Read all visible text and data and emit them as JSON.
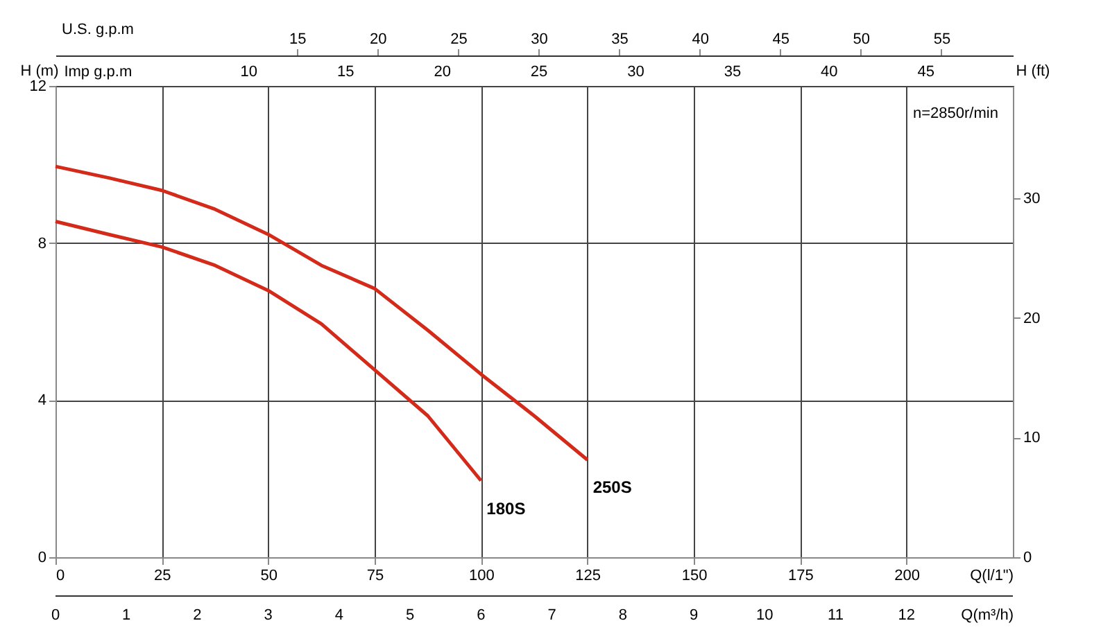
{
  "chart_data": {
    "type": "line",
    "x": [
      0,
      12.5,
      25,
      37.5,
      50,
      62.5,
      75,
      87.5,
      100,
      112.5,
      125
    ],
    "series": [
      {
        "name": "180S",
        "color": "#d42a1a",
        "values": [
          8.55,
          8.22,
          7.9,
          7.43,
          6.79,
          5.94,
          4.77,
          3.6,
          1.95,
          null,
          null
        ]
      },
      {
        "name": "250S",
        "color": "#d42a1a",
        "values": [
          9.95,
          9.66,
          9.34,
          8.86,
          8.22,
          7.43,
          6.84,
          5.78,
          4.66,
          3.6,
          2.48
        ]
      }
    ],
    "xlim": [
      0,
      225
    ],
    "xticks": [
      0,
      25,
      50,
      75,
      100,
      125,
      150,
      175,
      200
    ],
    "xlabel": "Q(l/1\")",
    "x2lim": [
      0,
      59.44
    ],
    "x2ticks": [
      15,
      20,
      25,
      30,
      35,
      40,
      45,
      50,
      55
    ],
    "x2label": "U.S.  g.p.m",
    "ylim": [
      0,
      12
    ],
    "yticks": [
      0,
      4,
      8,
      12
    ],
    "ylabel": "H (m)",
    "y2lim": [
      0,
      39.37
    ],
    "y2ticks": [
      0,
      10,
      20,
      30
    ],
    "y2label": "H (ft)",
    "annotations": [
      "n=2850r/min",
      "Imp  g.p.m",
      "10",
      "15",
      "20",
      "25",
      "30",
      "35",
      "40",
      "45",
      "0",
      "1",
      "2",
      "3",
      "4",
      "5",
      "6",
      "7",
      "8",
      "9",
      "10",
      "11",
      "12",
      "Q(m³/h)"
    ],
    "grid": true
  }
}
